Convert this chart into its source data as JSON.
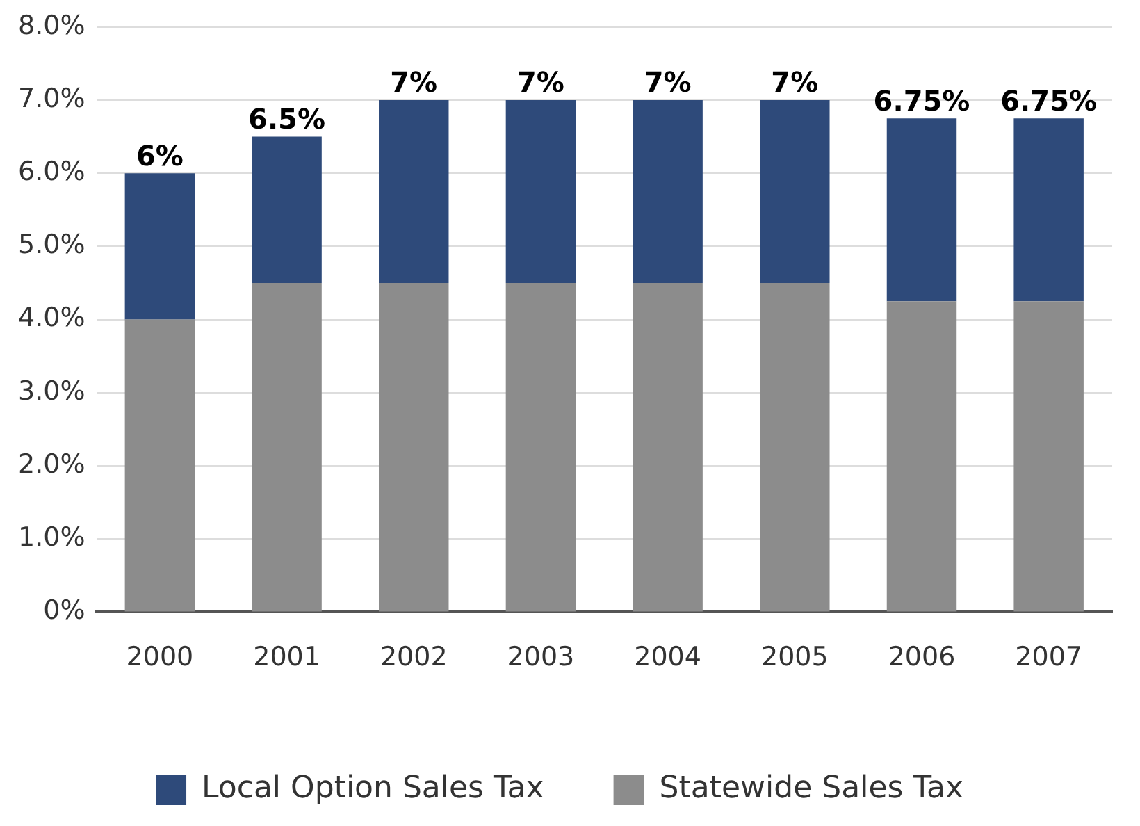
{
  "chart_data": {
    "type": "bar",
    "stacked": true,
    "categories": [
      "2000",
      "2001",
      "2002",
      "2003",
      "2004",
      "2005",
      "2006",
      "2007"
    ],
    "series": [
      {
        "name": "Statewide Sales Tax",
        "color": "#8c8c8c",
        "values": [
          4,
          4.5,
          4.5,
          4.5,
          4.5,
          4.5,
          4.25,
          4.25
        ]
      },
      {
        "name": "Local Option Sales Tax",
        "color": "#2e4a7a",
        "values": [
          2,
          2,
          2.5,
          2.5,
          2.5,
          2.5,
          2.5,
          2.5
        ]
      }
    ],
    "totals": [
      "6%",
      "6.5%",
      "7%",
      "7%",
      "7%",
      "7%",
      "6.75%",
      "6.75%"
    ],
    "ylim": [
      0,
      8
    ],
    "yticks": [
      {
        "value": 0,
        "label": "0%"
      },
      {
        "value": 1,
        "label": "1.0%"
      },
      {
        "value": 2,
        "label": "2.0%"
      },
      {
        "value": 3,
        "label": "3.0%"
      },
      {
        "value": 4,
        "label": "4.0%"
      },
      {
        "value": 5,
        "label": "5.0%"
      },
      {
        "value": 6,
        "label": "6.0%"
      },
      {
        "value": 7,
        "label": "7.0%"
      },
      {
        "value": 8,
        "label": "8.0%"
      }
    ],
    "grid": "y",
    "legend": "bottom"
  }
}
